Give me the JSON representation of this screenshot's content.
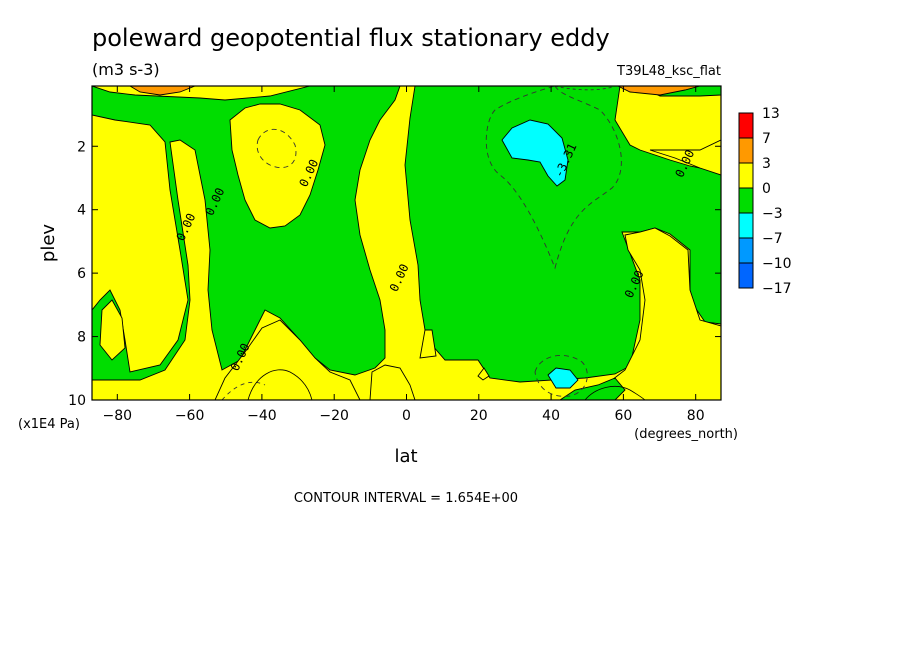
{
  "chart_data": {
    "type": "heatmap",
    "title": "poleward geopotential flux stationary eddy",
    "units": "(m3 s-3)",
    "experiment": "T39L48_ksc_flat",
    "xlabel": "lat",
    "x_unit_label": "(degrees_north)",
    "ylabel": "plev",
    "y_unit_label": "(x1E4 Pa)",
    "xlim": [
      -87,
      87
    ],
    "ylim": [
      0.1,
      10
    ],
    "y_inverted": true,
    "x_ticks": [
      -80,
      -60,
      -40,
      -20,
      0,
      20,
      40,
      60,
      80
    ],
    "x_tick_labels": [
      "−80",
      "−60",
      "−40",
      "−20",
      "0",
      "20",
      "40",
      "60",
      "80"
    ],
    "y_ticks": [
      2,
      4,
      6,
      8,
      10
    ],
    "y_tick_labels": [
      "2",
      "4",
      "6",
      "8",
      "10"
    ],
    "contour_interval_text": "CONTOUR INTERVAL = 1.654E+00",
    "contour_labels": [
      {
        "text": "0.00",
        "lat": -60,
        "plev": 4.6
      },
      {
        "text": "0.00",
        "lat": -52,
        "plev": 3.8
      },
      {
        "text": "0.00",
        "lat": -26,
        "plev": 2.9
      },
      {
        "text": "0.00",
        "lat": -1,
        "plev": 6.2
      },
      {
        "text": "0.00",
        "lat": -45,
        "plev": 8.7
      },
      {
        "text": "-3.31",
        "lat": 45,
        "plev": 2.5
      },
      {
        "text": "0.00",
        "lat": 64,
        "plev": 6.4
      },
      {
        "text": "0.00",
        "lat": 78,
        "plev": 2.6
      }
    ],
    "legend": {
      "placement": "right",
      "bins": [
        {
          "label": "13",
          "color": "#ff0000"
        },
        {
          "label": "7",
          "color": "#ff9900"
        },
        {
          "label": "3",
          "color": "#ffff00"
        },
        {
          "label": "0",
          "color": "#00dd00"
        },
        {
          "label": "−3",
          "color": "#00ffff"
        },
        {
          "label": "−7",
          "color": "#0099ff"
        },
        {
          "label": "−10",
          "color": "#0066ff"
        },
        {
          "label": "−17",
          "color": null
        }
      ]
    },
    "colors": {
      "positive_fill": "#ffff00",
      "negative_fill": "#00dd00",
      "strong_negative_fill": "#00ffff",
      "strong_positive_fill": "#ff9900",
      "max_positive_fill": "#ff0000"
    },
    "features": {
      "green_column_sh": {
        "lat_range": [
          -82,
          -65
        ],
        "plev_range": [
          0.5,
          10
        ]
      },
      "green_column_midsh": {
        "lat_range": [
          -55,
          -28
        ],
        "plev_range": [
          0.1,
          10
        ]
      },
      "green_core": {
        "lat_range": [
          6,
          66
        ],
        "plev_range": [
          0.1,
          9.5
        ]
      },
      "green_column_nh": {
        "lat_range": [
          50,
          87
        ],
        "plev_range": [
          2,
          10
        ]
      },
      "cyan_upper_nh": {
        "lat_range": [
          27,
          47
        ],
        "plev_range": [
          1.2,
          3.2
        ]
      },
      "cyan_lower_nh": {
        "lat_range": [
          38,
          46
        ],
        "plev_range": [
          8.9,
          9.6
        ]
      },
      "orange_top_sh": {
        "lat_range": [
          -77,
          -64
        ],
        "plev_range": [
          0.1,
          0.3
        ]
      },
      "orange_top_nh": {
        "lat_range": [
          64,
          80
        ],
        "plev_range": [
          0.1,
          0.3
        ]
      }
    }
  }
}
